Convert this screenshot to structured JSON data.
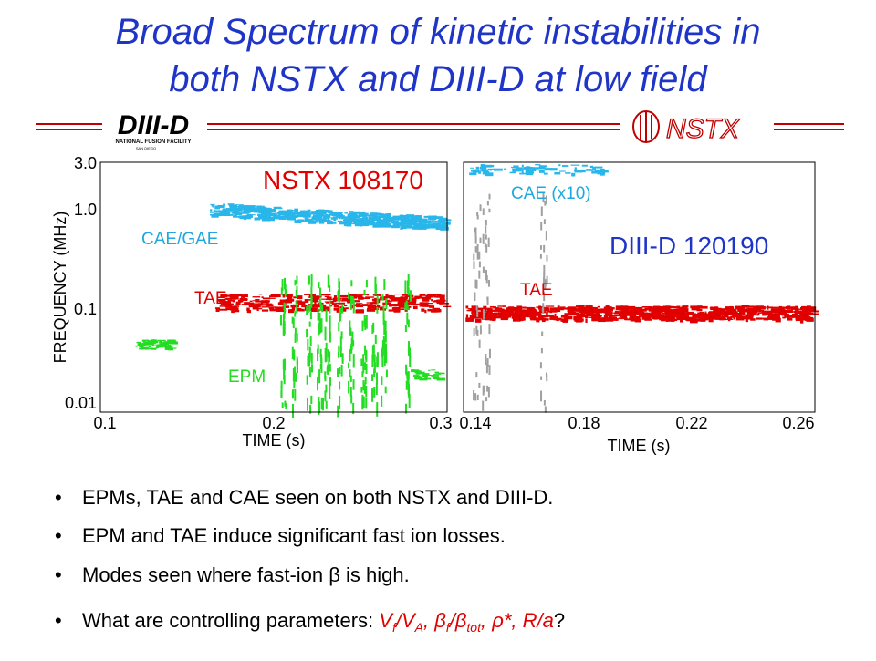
{
  "title": {
    "line1": "Broad Spectrum of kinetic instabilities in",
    "line2": "both NSTX and DIII-D at low field"
  },
  "logos": {
    "diiid": "DIII-D",
    "diiid_sub": "NATIONAL FUSION FACILITY",
    "diiid_city": "SAN DIEGO",
    "nstx": "NSTX"
  },
  "panels": [
    {
      "ylabel": "FREQUENCY (MHz)",
      "xlabel": "TIME (s)",
      "yticks": [
        "3.0",
        "1.0",
        "0.1",
        "0.01"
      ],
      "xticks": [
        "0.1",
        "0.2",
        "0.3"
      ],
      "annotations": [
        "NSTX 108170",
        "CAE/GAE",
        "TAE",
        "EPM"
      ]
    },
    {
      "xlabel": "TIME (s)",
      "xticks": [
        "0.14",
        "0.18",
        "0.22",
        "0.26"
      ],
      "annotations": [
        "CAE (x10)",
        "DIII-D 120190",
        "TAE"
      ]
    }
  ],
  "bullets": [
    {
      "parts": [
        "EPMs, TAE and CAE seen on both NSTX and DIII-D."
      ]
    },
    {
      "parts": [
        "EPM and TAE induce significant fast ion losses."
      ]
    },
    {
      "parts": [
        "Modes seen where fast-ion ",
        "β",
        " is high."
      ]
    },
    {
      "parts": [
        "What are controlling parameters: ",
        "V",
        "f",
        "/V",
        "A",
        ", ",
        "β",
        "f",
        "/",
        "β",
        "tot",
        ", ",
        "ρ",
        "*, ",
        "R/a",
        "?"
      ]
    }
  ]
}
